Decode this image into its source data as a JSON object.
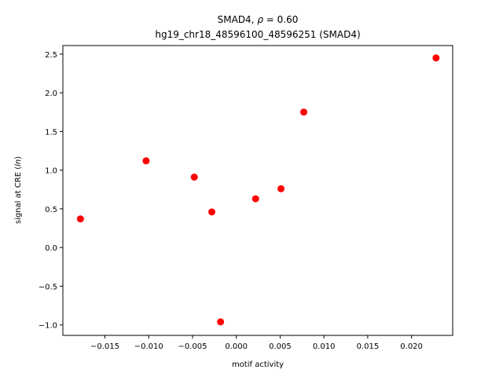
{
  "chart_data": {
    "type": "scatter",
    "title_line1_prefix": "SMAD4, ",
    "title_line1_rho": "ρ",
    "title_line1_suffix": " = 0.60",
    "title_line2": "hg19_chr18_48596100_48596251 (SMAD4)",
    "xlabel": "motif activity",
    "ylabel_prefix": "signal at CRE (",
    "ylabel_italic": "ln",
    "ylabel_suffix": ")",
    "xlim": [
      -0.0198,
      0.0247
    ],
    "ylim": [
      -1.135,
      2.61
    ],
    "xticks": [
      -0.015,
      -0.01,
      -0.005,
      0.0,
      0.005,
      0.01,
      0.015,
      0.02
    ],
    "xtick_labels": [
      "−0.015",
      "−0.010",
      "−0.005",
      "0.000",
      "0.005",
      "0.010",
      "0.015",
      "0.020"
    ],
    "yticks": [
      -1.0,
      -0.5,
      0.0,
      0.5,
      1.0,
      1.5,
      2.0,
      2.5
    ],
    "ytick_labels": [
      "−1.0",
      "−0.5",
      "0.0",
      "0.5",
      "1.0",
      "1.5",
      "2.0",
      "2.5"
    ],
    "points": [
      {
        "x": -0.0178,
        "y": 0.37
      },
      {
        "x": -0.0103,
        "y": 1.12
      },
      {
        "x": -0.0048,
        "y": 0.91
      },
      {
        "x": -0.0028,
        "y": 0.46
      },
      {
        "x": -0.0018,
        "y": -0.96
      },
      {
        "x": 0.0022,
        "y": 0.63
      },
      {
        "x": 0.0051,
        "y": 0.76
      },
      {
        "x": 0.0077,
        "y": 1.75
      },
      {
        "x": 0.0228,
        "y": 2.45
      }
    ],
    "marker_color": "#ff0000",
    "grid": false
  }
}
